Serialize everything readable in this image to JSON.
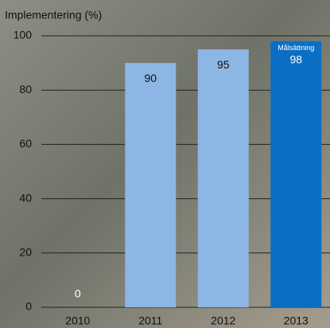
{
  "chart_data": {
    "type": "bar",
    "title": "Implementering (%)",
    "categories": [
      "2010",
      "2011",
      "2012",
      "2013"
    ],
    "values": [
      0,
      90,
      95,
      98
    ],
    "colors": [
      "#8cb6e4",
      "#8cb6e4",
      "#8cb6e4",
      "#0a6fc4"
    ],
    "annotation": {
      "text": "Målsättning",
      "category": "2013"
    },
    "ylim": [
      0,
      100
    ],
    "yticks": [
      0,
      20,
      40,
      60,
      80,
      100
    ],
    "grid": true
  }
}
